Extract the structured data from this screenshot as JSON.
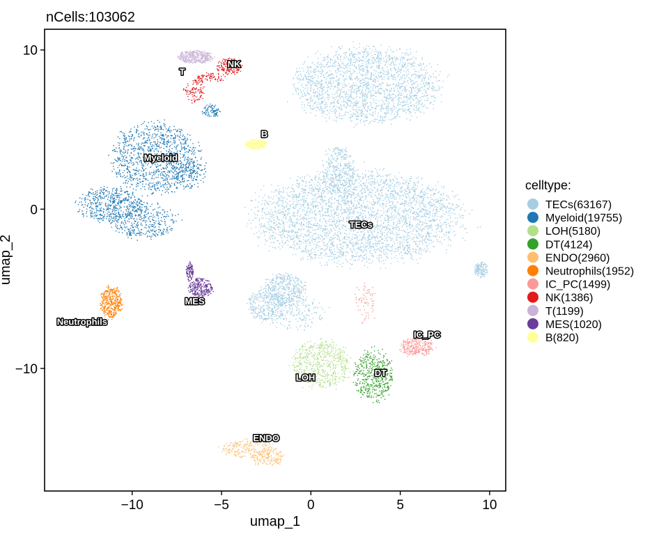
{
  "chart_data": {
    "type": "scatter",
    "title": "nCells:103062",
    "xlabel": "umap_1",
    "ylabel": "umap_2",
    "xlim": [
      -14.9,
      10.9
    ],
    "ylim": [
      -17.7,
      11.3
    ],
    "x_ticks": [
      -10,
      -5,
      0,
      5,
      10
    ],
    "x_tick_labels": [
      "−10",
      "−5",
      "0",
      "5",
      "10"
    ],
    "y_ticks": [
      10,
      0,
      -10
    ],
    "y_tick_labels": [
      "10",
      "0",
      "−10"
    ],
    "grid": false,
    "legend": {
      "title": "celltype:",
      "position": "right",
      "entries": [
        {
          "label": "TECs(63167)",
          "color": "#A6CEE3"
        },
        {
          "label": "Myeloid(19755)",
          "color": "#1F78B4"
        },
        {
          "label": "LOH(5180)",
          "color": "#B2DF8A"
        },
        {
          "label": "DT(4124)",
          "color": "#33A02C"
        },
        {
          "label": "ENDO(2960)",
          "color": "#FDBF6F"
        },
        {
          "label": "Neutrophils(1952)",
          "color": "#FF7F00"
        },
        {
          "label": "IC_PC(1499)",
          "color": "#FB9A99"
        },
        {
          "label": "NK(1386)",
          "color": "#E31A1C"
        },
        {
          "label": "T(1199)",
          "color": "#CAB2D6"
        },
        {
          "label": "MES(1020)",
          "color": "#6A3D9A"
        },
        {
          "label": "B(820)",
          "color": "#FFFF99"
        }
      ]
    },
    "clusters": [
      {
        "name": "TECs",
        "count": 63167,
        "color": "#A6CEE3",
        "label_pos": [
          2.8,
          -1.0
        ],
        "blobs": [
          [
            3.1,
            7.8,
            4.1,
            2.4,
            0.3
          ],
          [
            2.6,
            -0.5,
            5.8,
            2.9,
            0.5
          ],
          [
            -1.5,
            -5.0,
            1.2,
            1.0,
            0.06
          ],
          [
            -2.5,
            -6.0,
            1.1,
            1.0,
            0.04
          ],
          [
            1.5,
            2.5,
            0.9,
            1.5,
            0.05
          ],
          [
            9.5,
            -3.8,
            0.4,
            0.5,
            0.02
          ],
          [
            -1.0,
            -6.5,
            1.8,
            1.0,
            0.03
          ]
        ]
      },
      {
        "name": "Myeloid",
        "count": 19755,
        "color": "#1F78B4",
        "label_pos": [
          -8.4,
          3.2
        ],
        "blobs": [
          [
            -8.7,
            3.2,
            2.5,
            2.2,
            0.5
          ],
          [
            -11.2,
            0.3,
            1.9,
            1.1,
            0.24
          ],
          [
            -9.3,
            -0.7,
            1.8,
            1.1,
            0.16
          ],
          [
            -5.6,
            6.2,
            0.5,
            0.4,
            0.04
          ],
          [
            -6.8,
            2.2,
            0.9,
            0.9,
            0.06
          ]
        ]
      },
      {
        "name": "LOH",
        "count": 5180,
        "color": "#B2DF8A",
        "label_pos": [
          -0.3,
          -10.6
        ],
        "blobs": [
          [
            0.6,
            -9.7,
            1.7,
            1.5,
            1.0
          ]
        ]
      },
      {
        "name": "DT",
        "count": 4124,
        "color": "#33A02C",
        "label_pos": [
          3.9,
          -10.3
        ],
        "blobs": [
          [
            3.5,
            -10.4,
            1.1,
            1.6,
            1.0
          ]
        ]
      },
      {
        "name": "ENDO",
        "count": 2960,
        "color": "#FDBF6F",
        "label_pos": [
          -2.5,
          -14.4
        ],
        "blobs": [
          [
            -3.5,
            -15.0,
            1.5,
            0.6,
            0.6
          ],
          [
            -2.4,
            -15.6,
            1.0,
            0.5,
            0.4
          ]
        ]
      },
      {
        "name": "Neutrophils",
        "count": 1952,
        "color": "#FF7F00",
        "label_pos": [
          -12.8,
          -7.1
        ],
        "blobs": [
          [
            -11.2,
            -5.8,
            0.6,
            1.0,
            1.0
          ]
        ]
      },
      {
        "name": "IC_PC",
        "count": 1499,
        "color": "#FB9A99",
        "label_pos": [
          6.5,
          -7.9
        ],
        "blobs": [
          [
            5.9,
            -8.6,
            1.0,
            0.6,
            0.8
          ],
          [
            3.0,
            -5.8,
            0.6,
            1.2,
            0.2
          ]
        ]
      },
      {
        "name": "NK",
        "count": 1386,
        "color": "#E31A1C",
        "label_pos": [
          -4.3,
          9.1
        ],
        "blobs": [
          [
            -4.6,
            9.0,
            0.7,
            0.5,
            0.5
          ],
          [
            -6.5,
            7.5,
            0.6,
            0.8,
            0.3
          ],
          [
            -5.6,
            8.3,
            0.8,
            0.3,
            0.2
          ]
        ]
      },
      {
        "name": "T",
        "count": 1199,
        "color": "#CAB2D6",
        "label_pos": [
          -7.2,
          8.6
        ],
        "blobs": [
          [
            -6.5,
            9.6,
            1.0,
            0.4,
            1.0
          ]
        ]
      },
      {
        "name": "MES",
        "count": 1020,
        "color": "#6A3D9A",
        "label_pos": [
          -6.5,
          -5.8
        ],
        "blobs": [
          [
            -6.2,
            -4.9,
            0.7,
            0.6,
            0.7
          ],
          [
            -6.8,
            -3.9,
            0.2,
            0.6,
            0.3
          ]
        ]
      },
      {
        "name": "B",
        "count": 820,
        "color": "#FFFF99",
        "label_pos": [
          -2.6,
          4.7
        ],
        "blobs": [
          [
            -3.1,
            4.1,
            0.6,
            0.3,
            1.0
          ]
        ]
      }
    ]
  }
}
